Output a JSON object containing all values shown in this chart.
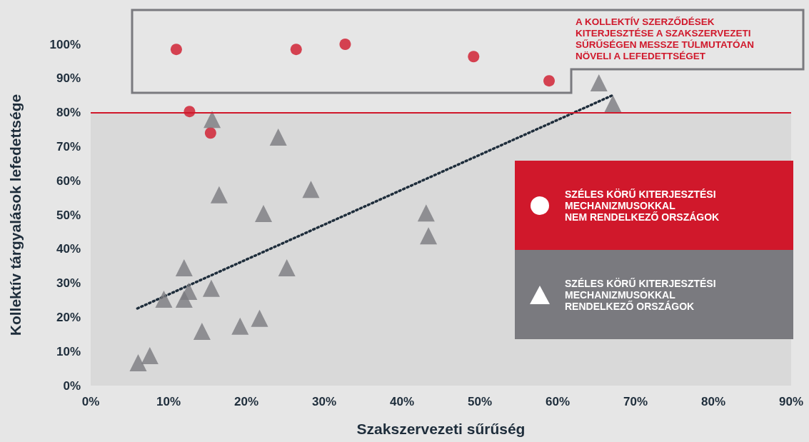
{
  "chart_data": {
    "type": "scatter",
    "xlabel": "Szakszervezeti sűrűség",
    "ylabel": "Kollektív tárgyalások lefedettsége",
    "xlim": [
      0,
      90
    ],
    "ylim": [
      0,
      100
    ],
    "xticks": [
      {
        "value": 0,
        "label": "0%"
      },
      {
        "value": 10,
        "label": "10%"
      },
      {
        "value": 20,
        "label": "20%"
      },
      {
        "value": 30,
        "label": "30%"
      },
      {
        "value": 40,
        "label": "40%"
      },
      {
        "value": 50,
        "label": "50%"
      },
      {
        "value": 60,
        "label": "60%"
      },
      {
        "value": 70,
        "label": "70%"
      },
      {
        "value": 80,
        "label": "80%"
      },
      {
        "value": 90,
        "label": "90%"
      }
    ],
    "yticks": [
      {
        "value": 0,
        "label": "0%"
      },
      {
        "value": 10,
        "label": "10%"
      },
      {
        "value": 20,
        "label": "20%"
      },
      {
        "value": 30,
        "label": "30%"
      },
      {
        "value": 40,
        "label": "40%"
      },
      {
        "value": 50,
        "label": "50%"
      },
      {
        "value": 60,
        "label": "60%"
      },
      {
        "value": 70,
        "label": "70%"
      },
      {
        "value": 80,
        "label": "80%"
      },
      {
        "value": 90,
        "label": "90%"
      },
      {
        "value": 100,
        "label": "100%"
      }
    ],
    "grid": false,
    "legend": "right",
    "series": [
      {
        "name": "SZÉLES KÖRŰ KITERJESZTÉSI\nMECHANIZMUSOKKAL\nNEM RENDELKEZŐ ORSZÁGOK",
        "color": "#d0182b",
        "marker": "circle",
        "x": [
          11.0,
          26.4,
          32.7,
          49.2,
          58.9,
          12.7,
          15.4
        ],
        "values": [
          98.5,
          98.5,
          100,
          96.4,
          89.3,
          80.3,
          74
        ]
      },
      {
        "name": "SZÉLES KÖRŰ KITERJESZTÉSI\nMECHANIZMUSOKKAL\nRENDELKEZŐ ORSZÁGOK",
        "color": "#7a7a7f",
        "marker": "triangle",
        "x": [
          65.3,
          67.1,
          15.6,
          24.1,
          16.5,
          28.3,
          22.2,
          43.1,
          43.4,
          12.0,
          25.2,
          12.6,
          15.5,
          9.4,
          12.0,
          14.3,
          19.2,
          21.7,
          7.6,
          6.1
        ],
        "values": [
          88.7,
          82.6,
          78,
          72.8,
          55.9,
          57.5,
          50.4,
          50.6,
          43.9,
          34.5,
          34.5,
          27.6,
          28.5,
          25.3,
          25.3,
          15.9,
          17.4,
          19.7,
          8.8,
          6.7
        ]
      },
      {
        "type": "line",
        "color": "#1e2d3b",
        "marker": "none",
        "line_style": "dotted",
        "x": [
          6.0,
          67.1
        ],
        "values": [
          22.6,
          85.1
        ]
      }
    ],
    "ref_lines": [
      {
        "axis": "y",
        "value": 80,
        "color": "#d0182b",
        "line_style": "solid"
      }
    ],
    "bands": [
      {
        "axis": "y",
        "from": 0,
        "to": 80,
        "color": "#d9d9d9"
      }
    ],
    "annotations": [
      "A KOLLEKTÍV SZERZŐDÉSEK\nKITERJESZTÉSE A SZAKSZERVEZETI\nSŰRŰSÉGEN MESSZE TÚLMUTATÓAN\nNÖVELI A LEFEDETTSÉGET"
    ]
  }
}
